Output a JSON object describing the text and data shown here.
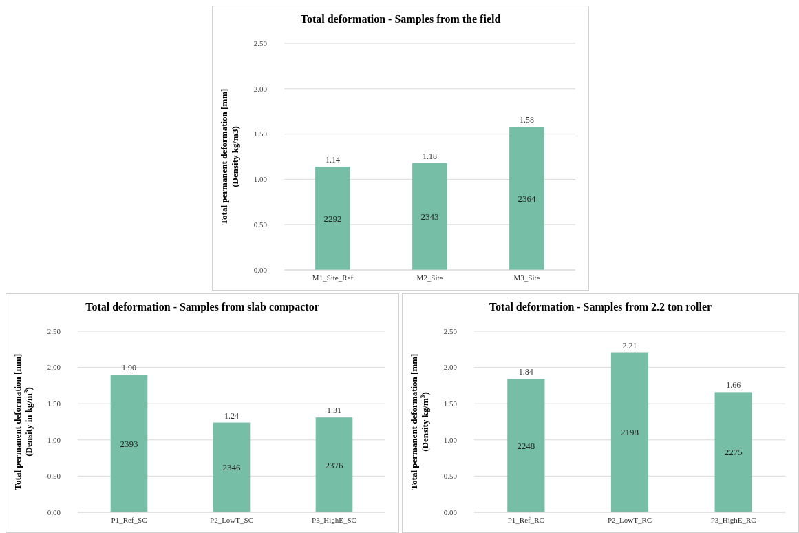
{
  "chart_data": [
    {
      "type": "bar",
      "title": "Total deformation - Samples from the field",
      "ylabel": "Total permanent deformation [mm]\n(Density kg/m3)",
      "categories": [
        "M1_Site_Ref",
        "M2_Site",
        "M3_Site"
      ],
      "values": [
        1.14,
        1.18,
        1.58
      ],
      "color": "#76bea6",
      "ylim": [
        0,
        2.5
      ],
      "yticks": [
        {
          "value": 0,
          "label": "0.00"
        },
        {
          "value": 0.5,
          "label": "0.50"
        },
        {
          "value": 1,
          "label": "1.00"
        },
        {
          "value": 1.5,
          "label": "1.50"
        },
        {
          "value": 2,
          "label": "2.00"
        },
        {
          "value": 2.5,
          "label": "2.50"
        }
      ],
      "grid": "y",
      "data_labels": true,
      "annotations": [
        "2292",
        "2343",
        "2364"
      ]
    },
    {
      "type": "bar",
      "title": "Total deformation - Samples from slab compactor",
      "ylabel": "Total permanent deformation [mm]\n(Density in kg/m$^{3}$)",
      "categories": [
        "P1_Ref_SC",
        "P2_LowT_SC",
        "P3_HighE_SC"
      ],
      "values": [
        1.9,
        1.24,
        1.31
      ],
      "value_labels": [
        "1.90",
        "1.24",
        "1.31"
      ],
      "color": "#76bea6",
      "ylim": [
        0,
        2.5
      ],
      "yticks": [
        {
          "value": 0,
          "label": "0.00"
        },
        {
          "value": 0.5,
          "label": "0.50"
        },
        {
          "value": 1,
          "label": "1.00"
        },
        {
          "value": 1.5,
          "label": "1.50"
        },
        {
          "value": 2,
          "label": "2.00"
        },
        {
          "value": 2.5,
          "label": "2.50"
        }
      ],
      "grid": "y",
      "annotations": [
        "2393",
        "2346",
        "2376"
      ]
    },
    {
      "type": "bar",
      "title": "Total deformation - Samples from 2.2 ton roller",
      "ylabel": "Total permanent deformation [mm]\n(Density kg/m$^{3}$)",
      "categories": [
        "P1_Ref_RC",
        "P2_LowT_RC",
        "P3_HighE_RC"
      ],
      "values": [
        1.84,
        2.21,
        1.66
      ],
      "color": "#76bea6",
      "ylim": [
        0,
        2.5
      ],
      "yticks": [
        {
          "value": 0,
          "label": "0.00"
        },
        {
          "value": 0.5,
          "label": "0.50"
        },
        {
          "value": 1,
          "label": "1.00"
        },
        {
          "value": 1.5,
          "label": "1.50"
        },
        {
          "value": 2,
          "label": "2.00"
        },
        {
          "value": 2.5,
          "label": "2.50"
        }
      ],
      "grid": "y",
      "data_labels": true,
      "annotations": [
        "2248",
        "2198",
        "2275"
      ]
    }
  ]
}
